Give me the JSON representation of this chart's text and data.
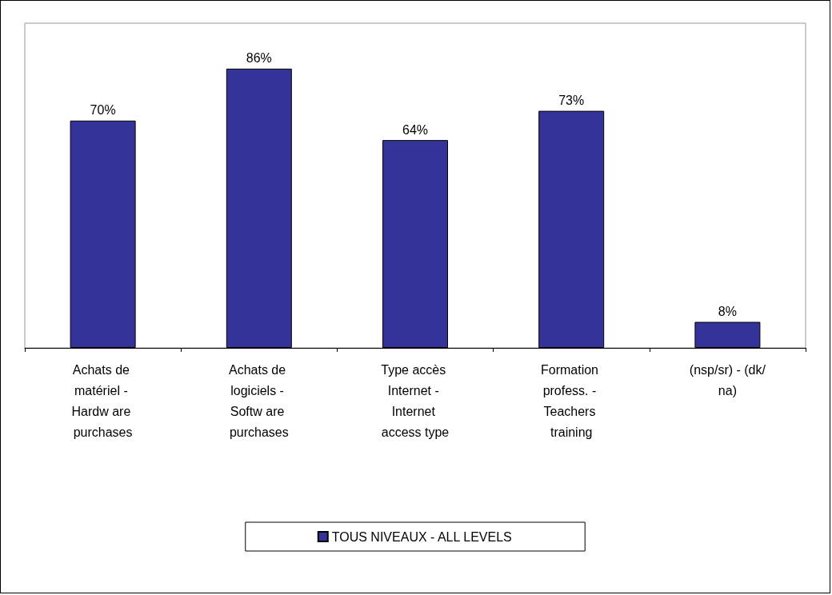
{
  "chart_data": {
    "type": "bar",
    "categories": [
      "Achats de matériel - Hardw are purchases",
      "Achats de logiciels - Softw are purchases",
      "Type accès Internet - Internet access type",
      "Formation profess. - Teachers training",
      "(nsp/sr) - (dk/na)"
    ],
    "series": [
      {
        "name": "TOUS NIVEAUX - ALL LEVELS",
        "color": "#333399",
        "values": [
          70,
          86,
          64,
          73,
          8
        ],
        "value_labels": [
          "70%",
          "86%",
          "64%",
          "73%",
          "8%"
        ]
      }
    ],
    "legend": "bottom"
  }
}
